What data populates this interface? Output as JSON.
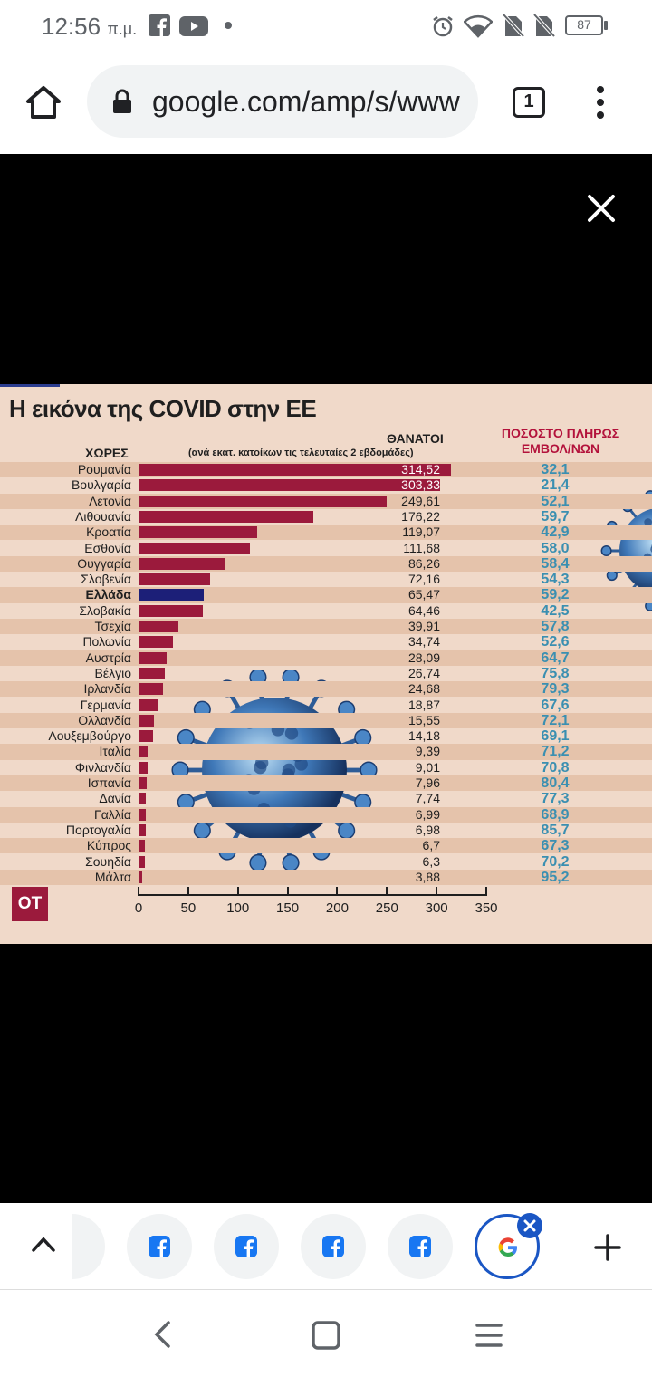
{
  "status_bar": {
    "time": "12:56",
    "ampm": "π.μ.",
    "battery": "87"
  },
  "browser": {
    "url": "google.com/amp/s/www",
    "tab_count": "1"
  },
  "infographic": {
    "title": "Η εικόνα της COVID στην ΕΕ",
    "countries_header": "ΧΩΡΕΣ",
    "deaths_header": "ΘΑΝΑΤΟΙ",
    "deaths_subheader": "(ανά εκατ. κατοίκων τις τελευταίες 2 εβδομάδες)",
    "vax_header_line1": "ΠΟΣΟΣΤΟ ΠΛΗΡΩΣ",
    "vax_header_line2": "ΕΜΒΟΛ/ΝΩΝ",
    "logo": "ΟΤ",
    "colors": {
      "bar": "#9b1a3c",
      "highlight": "#1c1f78",
      "vax": "#3a8fb1"
    }
  },
  "chart_data": {
    "type": "bar",
    "orientation": "horizontal",
    "title": "Η εικόνα της COVID στην ΕΕ",
    "xlabel": "ΘΑΝΑΤΟΙ (ανά εκατ. κατοίκων τις τελευταίες 2 εβδομάδες)",
    "ylabel": "ΧΩΡΕΣ",
    "xlim": [
      0,
      350
    ],
    "ticks": [
      0,
      50,
      100,
      150,
      200,
      250,
      300,
      350
    ],
    "highlight": "Ελλάδα",
    "categories": [
      "Ρουμανία",
      "Βουλγαρία",
      "Λετονία",
      "Λιθουανία",
      "Κροατία",
      "Εσθονία",
      "Ουγγαρία",
      "Σλοβενία",
      "Ελλάδα",
      "Σλοβακία",
      "Τσεχία",
      "Πολωνία",
      "Αυστρία",
      "Βέλγιο",
      "Ιρλανδία",
      "Γερμανία",
      "Ολλανδία",
      "Λουξεμβούργο",
      "Ιταλία",
      "Φινλανδία",
      "Ισπανία",
      "Δανία",
      "Γαλλία",
      "Πορτογαλία",
      "Κύπρος",
      "Σουηδία",
      "Μάλτα"
    ],
    "values": [
      314.52,
      303.33,
      249.61,
      176.22,
      119.07,
      111.68,
      86.26,
      72.16,
      65.47,
      64.46,
      39.91,
      34.74,
      28.09,
      26.74,
      24.68,
      18.87,
      15.55,
      14.18,
      9.39,
      9.01,
      7.96,
      7.74,
      6.99,
      6.98,
      6.7,
      6.3,
      3.88
    ],
    "labels": [
      "314,52",
      "303,33",
      "249,61",
      "176,22",
      "119,07",
      "111,68",
      "86,26",
      "72,16",
      "65,47",
      "64,46",
      "39,91",
      "34,74",
      "28,09",
      "26,74",
      "24,68",
      "18,87",
      "15,55",
      "14,18",
      "9,39",
      "9,01",
      "7,96",
      "7,74",
      "6,99",
      "6,98",
      "6,7",
      "6,3",
      "3,88"
    ],
    "vaccination_pct": [
      "32,1",
      "21,4",
      "52,1",
      "59,7",
      "42,9",
      "58,0",
      "58,4",
      "54,3",
      "59,2",
      "42,5",
      "57,8",
      "52,6",
      "64,7",
      "75,8",
      "79,3",
      "67,6",
      "72,1",
      "69,1",
      "71,2",
      "70,8",
      "80,4",
      "77,3",
      "68,9",
      "85,7",
      "67,3",
      "70,2",
      "95,2"
    ]
  }
}
